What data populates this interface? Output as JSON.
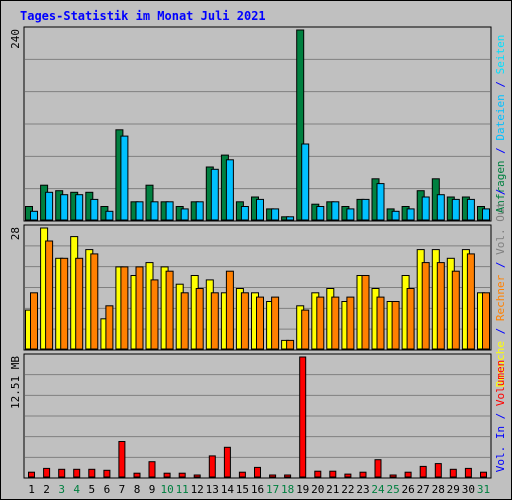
{
  "chart_data": {
    "title": "Tages-Statistik im Monat Juli 2021",
    "type": "bar",
    "categories": [
      "1",
      "2",
      "3",
      "4",
      "5",
      "6",
      "7",
      "8",
      "9",
      "10",
      "11",
      "12",
      "13",
      "14",
      "15",
      "16",
      "17",
      "18",
      "19",
      "20",
      "21",
      "22",
      "23",
      "24",
      "25",
      "26",
      "27",
      "28",
      "29",
      "30",
      "31"
    ],
    "weekend_days": [
      "3",
      "4",
      "10",
      "11",
      "17",
      "18",
      "24",
      "25",
      "31"
    ],
    "panels": [
      {
        "name": "hits",
        "ymax_label": "240",
        "ymax": 240,
        "series": [
          {
            "name": "Anfragen",
            "color": "#008040",
            "values": [
              17,
              44,
              37,
              35,
              35,
              17,
              114,
              23,
              44,
              23,
              17,
              23,
              67,
              82,
              23,
              29,
              14,
              4,
              240,
              20,
              23,
              17,
              26,
              52,
              14,
              17,
              37,
              52,
              29,
              29,
              17
            ]
          },
          {
            "name": "Dateien",
            "color": "#00c0ff",
            "values": [
              11,
              35,
              32,
              32,
              26,
              11,
              106,
              23,
              23,
              23,
              14,
              23,
              64,
              76,
              17,
              26,
              14,
              4,
              96,
              17,
              23,
              14,
              26,
              46,
              11,
              14,
              29,
              32,
              26,
              26,
              14
            ]
          }
        ],
        "right_label_parts": [
          {
            "text": "Anfragen",
            "color": "#008040"
          },
          {
            "text": " / ",
            "color": "#0000ff"
          },
          {
            "text": "Dateien",
            "color": "#00c0ff"
          },
          {
            "text": " / ",
            "color": "#0000ff"
          },
          {
            "text": "Seiten",
            "color": "#00e0ff"
          }
        ]
      },
      {
        "name": "visits",
        "ymax_label": "28",
        "ymax": 28,
        "series": [
          {
            "name": "Besuche",
            "color": "#ffff00",
            "values": [
              9,
              28,
              21,
              26,
              23,
              7,
              19,
              17,
              20,
              19,
              15,
              17,
              16,
              13,
              14,
              13,
              11,
              2,
              10,
              13,
              14,
              11,
              17,
              14,
              11,
              17,
              23,
              23,
              21,
              23,
              13
            ]
          },
          {
            "name": "Rechner",
            "color": "#ff8000",
            "values": [
              13,
              25,
              21,
              21,
              22,
              10,
              19,
              19,
              16,
              18,
              13,
              14,
              13,
              18,
              13,
              12,
              12,
              2,
              9,
              12,
              12,
              12,
              17,
              12,
              11,
              14,
              20,
              20,
              18,
              22,
              13
            ]
          }
        ],
        "right_label_parts": [
          {
            "text": "Besuche",
            "color": "#ffff00"
          },
          {
            "text": " / ",
            "color": "#0000ff"
          },
          {
            "text": "Rechner",
            "color": "#ff8000"
          },
          {
            "text": " / ",
            "color": "#0000ff"
          },
          {
            "text": "Vol. Out",
            "color": "#808080"
          },
          {
            "text": " / ",
            "color": "#0000ff"
          }
        ]
      },
      {
        "name": "volume",
        "ymax_label": "12.51 MB",
        "ymax": 12.51,
        "series": [
          {
            "name": "Volumen",
            "color": "#ff0000",
            "values": [
              0.5,
              0.9,
              0.8,
              0.8,
              0.8,
              0.7,
              3.7,
              0.4,
              1.6,
              0.4,
              0.4,
              0.2,
              2.2,
              3.1,
              0.5,
              1.0,
              0.2,
              0.0,
              12.51,
              0.6,
              0.6,
              0.3,
              0.5,
              1.8,
              0.2,
              0.5,
              1.1,
              1.4,
              0.8,
              0.9,
              0.5
            ]
          }
        ],
        "right_label_parts": [
          {
            "text": "Vol. In",
            "color": "#0000ff"
          },
          {
            "text": " / ",
            "color": "#0000ff"
          },
          {
            "text": "Volumen",
            "color": "#ff0000"
          }
        ]
      }
    ],
    "grid": true
  }
}
